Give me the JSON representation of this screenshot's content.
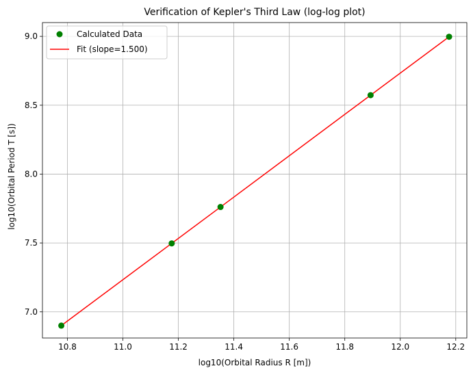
{
  "chart_data": {
    "type": "scatter",
    "title": "Verification of Kepler's Third Law (log-log plot)",
    "xlabel": "log10(Orbital Radius R [m])",
    "ylabel": "log10(Orbital Period T [s])",
    "xlim": [
      10.71,
      12.24
    ],
    "ylim": [
      6.81,
      9.1
    ],
    "xticks": [
      10.8,
      11.0,
      11.2,
      11.4,
      11.6,
      11.8,
      12.0,
      12.2
    ],
    "xtick_labels": [
      "10.8",
      "11.0",
      "11.2",
      "11.4",
      "11.6",
      "11.8",
      "12.0",
      "12.2"
    ],
    "yticks": [
      7.0,
      7.5,
      8.0,
      8.5,
      9.0
    ],
    "ytick_labels": [
      "7.0",
      "7.5",
      "8.0",
      "8.5",
      "9.0"
    ],
    "grid": true,
    "legend_position": "top-left",
    "series": [
      {
        "name": "Calculated Data",
        "kind": "scatter",
        "color": "#008000",
        "x": [
          10.778,
          11.176,
          11.352,
          11.893,
          12.176
        ],
        "y": [
          6.9,
          7.497,
          7.761,
          8.573,
          8.997
        ]
      },
      {
        "name": "Fit (slope=1.500)",
        "kind": "line",
        "color": "#ff0000",
        "x": [
          10.778,
          11.176,
          11.352,
          11.893,
          12.176
        ],
        "y": [
          6.9,
          7.497,
          7.761,
          8.573,
          8.997
        ]
      }
    ]
  }
}
